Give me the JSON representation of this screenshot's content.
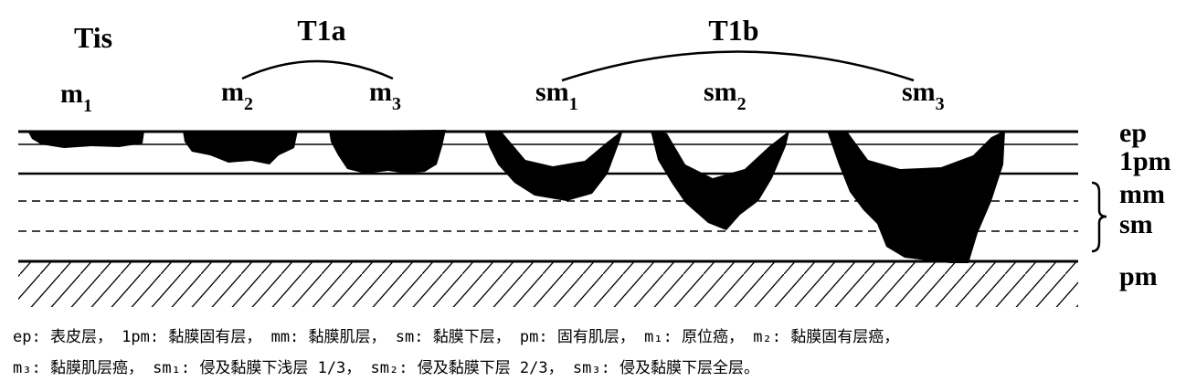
{
  "groups": [
    {
      "label": "Tis"
    },
    {
      "label": "T1a"
    },
    {
      "label": "T1b"
    }
  ],
  "stages": [
    {
      "base": "m",
      "sub": "1"
    },
    {
      "base": "m",
      "sub": "2"
    },
    {
      "base": "m",
      "sub": "3"
    },
    {
      "base": "sm",
      "sub": "1"
    },
    {
      "base": "sm",
      "sub": "2"
    },
    {
      "base": "sm",
      "sub": "3"
    }
  ],
  "layers": [
    "ep",
    "1pm",
    "mm",
    "sm",
    "pm"
  ],
  "caption": {
    "lines": [
      "ep: 表皮层， 1pm: 黏膜固有层， mm: 黏膜肌层， sm: 黏膜下层， pm: 固有肌层， m₁: 原位癌， m₂: 黏膜固有层癌，",
      "m₃: 黏膜肌层癌， sm₁: 侵及黏膜下浅层 1/3， sm₂: 侵及黏膜下层 2/3， sm₃: 侵及黏膜下层全层。"
    ]
  }
}
